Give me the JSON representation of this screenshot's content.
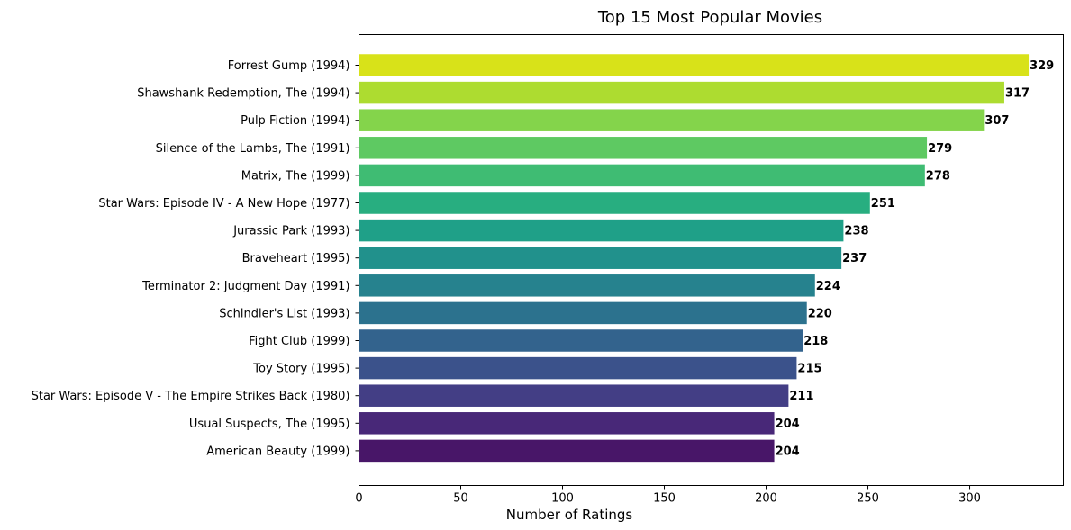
{
  "chart_data": {
    "type": "bar",
    "orientation": "horizontal",
    "title": "Top 15 Most Popular Movies",
    "xlabel": "Number of Ratings",
    "ylabel": "",
    "xlim": [
      0,
      346
    ],
    "xticks": [
      0,
      50,
      100,
      150,
      200,
      250,
      300
    ],
    "grid": false,
    "categories": [
      "Forrest Gump (1994)",
      "Shawshank Redemption, The (1994)",
      "Pulp Fiction (1994)",
      "Silence of the Lambs, The (1991)",
      "Matrix, The (1999)",
      "Star Wars: Episode IV - A New Hope (1977)",
      "Jurassic Park (1993)",
      "Braveheart (1995)",
      "Terminator 2: Judgment Day (1991)",
      "Schindler's List (1993)",
      "Fight Club (1999)",
      "Toy Story (1995)",
      "Star Wars: Episode V - The Empire Strikes Back (1980)",
      "Usual Suspects, The (1995)",
      "American Beauty (1999)"
    ],
    "values": [
      329,
      317,
      307,
      279,
      278,
      251,
      238,
      237,
      224,
      220,
      218,
      215,
      211,
      204,
      204
    ],
    "colors": [
      "#d8e219",
      "#addc30",
      "#84d44b",
      "#5ec962",
      "#3fbc73",
      "#28ae80",
      "#1fa088",
      "#21918c",
      "#26828e",
      "#2c728e",
      "#33638d",
      "#3b528b",
      "#433e85",
      "#482878",
      "#481668"
    ]
  }
}
